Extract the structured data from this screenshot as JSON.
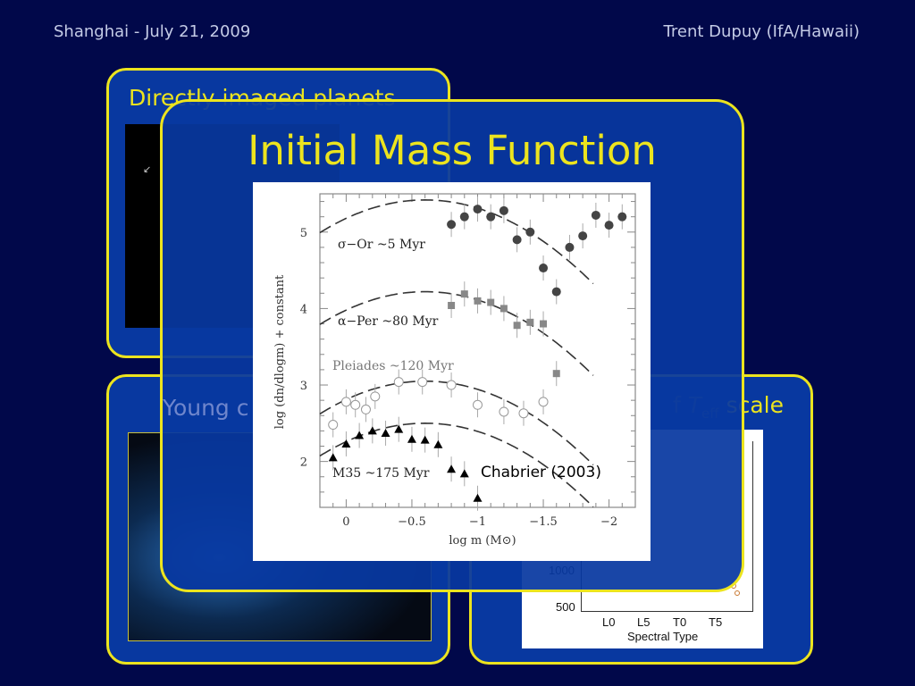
{
  "header": {
    "left": "Shanghai - July 21, 2009",
    "right": "Trent Dupuy (IfA/Hawaii)"
  },
  "panels": {
    "top_left": {
      "title": "Directly imaged planets"
    },
    "bottom_left": {
      "title": "Young c"
    },
    "bottom_right": {
      "title_pre": "f ",
      "title_T": "T",
      "title_sub": "eff",
      "title_post": " scale",
      "chart": {
        "y_ticks": [
          "1000",
          "500"
        ],
        "x_ticks": [
          "L0",
          "L5",
          "T0",
          "T5"
        ],
        "xlabel": "Spectral Type",
        "marker_color": "#c87830"
      }
    }
  },
  "front": {
    "title": "Initial Mass Function",
    "credit": "Chabrier (2003)"
  },
  "colors": {
    "background": "#01084a",
    "panel": "#0838a0",
    "accent": "#ece41e"
  },
  "chart_data": {
    "type": "scatter",
    "xlabel": "log m (M⊙)",
    "ylabel": "log (dn/dlogm) + constant",
    "xlim": [
      0.2,
      -2.2
    ],
    "ylim": [
      1.4,
      5.5
    ],
    "x_ticks": [
      0,
      -0.5,
      -1,
      -1.5,
      -2
    ],
    "x_tick_labels": [
      "0",
      "−0.5",
      "−1",
      "−1.5",
      "−2"
    ],
    "y_ticks": [
      2,
      3,
      4,
      5
    ],
    "y_tick_labels": [
      "2",
      "3",
      "4",
      "5"
    ],
    "series": [
      {
        "name": "σ−Or ~5 Myr",
        "marker": "filled-circle",
        "color": "#444444",
        "model_peak": 5.42,
        "x": [
          -0.8,
          -0.9,
          -1.0,
          -1.1,
          -1.2,
          -1.3,
          -1.4,
          -1.5,
          -1.6,
          -1.7,
          -1.8,
          -1.9,
          -2.0,
          -2.1
        ],
        "y": [
          5.1,
          5.2,
          5.3,
          5.2,
          5.28,
          4.9,
          5.0,
          4.53,
          4.22,
          4.8,
          4.95,
          5.22,
          5.09,
          5.2
        ]
      },
      {
        "name": "α−Per ~80 Myr",
        "marker": "filled-square",
        "color": "#888888",
        "model_peak": 4.22,
        "x": [
          -0.8,
          -0.9,
          -1.0,
          -1.1,
          -1.2,
          -1.3,
          -1.4,
          -1.5,
          -1.6
        ],
        "y": [
          4.04,
          4.19,
          4.1,
          4.08,
          4.0,
          3.78,
          3.82,
          3.8,
          3.15
        ]
      },
      {
        "name": "Pleiades ~120 Myr",
        "marker": "open-circle",
        "color": "#999999",
        "model_peak": 3.05,
        "x": [
          -0.4,
          -0.58,
          -0.8,
          -1.0,
          -1.2,
          -1.35,
          -1.5,
          0.1,
          0.0,
          -0.07,
          -0.15,
          -0.22
        ],
        "y": [
          3.04,
          3.04,
          3.0,
          2.74,
          2.65,
          2.63,
          2.78,
          2.48,
          2.78,
          2.74,
          2.68,
          2.85
        ]
      },
      {
        "name": "M35 ~175 Myr",
        "marker": "filled-triangle",
        "color": "#000000",
        "model_peak": 2.5,
        "x": [
          0.1,
          0.0,
          -0.1,
          -0.2,
          -0.3,
          -0.4,
          -0.5,
          -0.6,
          -0.7,
          -0.8,
          -0.9,
          -1.0
        ],
        "y": [
          2.05,
          2.23,
          2.34,
          2.4,
          2.37,
          2.42,
          2.29,
          2.28,
          2.22,
          1.9,
          1.84,
          1.52
        ]
      }
    ],
    "model": {
      "shape": "lognormal",
      "peak_log_m": -0.6,
      "sigma": 0.57,
      "style": "dashed"
    }
  }
}
